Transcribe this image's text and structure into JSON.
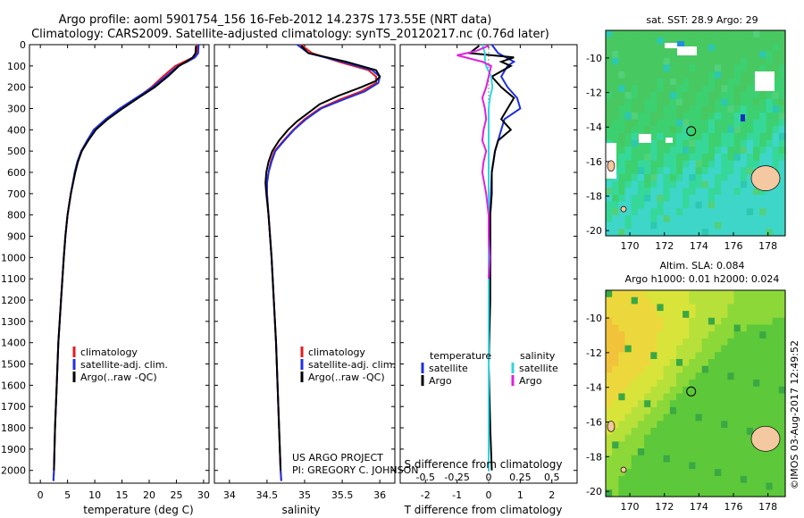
{
  "header": {
    "line1": "Argo profile: aoml 5901754_156 16-Feb-2012 14.237S 173.55E (NRT data)",
    "line2": "Climatology: CARS2009. Satellite-adjusted climatology: synTS_20120217.nc (0.76d later)"
  },
  "colors": {
    "climatology": "#e41a1c",
    "satellite": "#1f2fe0",
    "argo": "#000000",
    "sat_salinity": "#2fd6e0",
    "argo_salinity": "#e020e0"
  },
  "chart_data": [
    {
      "type": "line",
      "id": "temperature",
      "xlabel": "temperature (deg C)",
      "ylabel": "",
      "xlim": [
        -2,
        31
      ],
      "ylim": [
        2060,
        0
      ],
      "xticks": [
        0,
        5,
        10,
        15,
        20,
        25,
        30
      ],
      "yticks": [
        0,
        100,
        200,
        300,
        400,
        500,
        600,
        700,
        800,
        900,
        1000,
        1100,
        1200,
        1300,
        1400,
        1500,
        1600,
        1700,
        1800,
        1900,
        2000
      ],
      "legend": [
        "climatology",
        "satellite-adj. clim.",
        "Argo(..raw -QC)"
      ],
      "series": [
        {
          "name": "climatology",
          "color": "#e41a1c",
          "depth": [
            0,
            40,
            60,
            80,
            100,
            150,
            200,
            250,
            300,
            350,
            400,
            450,
            500,
            550,
            600,
            700,
            800,
            900,
            1000,
            1200,
            1400,
            1600,
            1800,
            2000,
            2050
          ],
          "values": [
            28.9,
            28.8,
            28.1,
            26.4,
            24.8,
            22.5,
            20.4,
            17.8,
            14.9,
            12.2,
            10.0,
            8.7,
            7.6,
            6.9,
            6.4,
            5.6,
            5.0,
            4.6,
            4.3,
            3.8,
            3.3,
            3.0,
            2.7,
            2.5,
            2.4
          ]
        },
        {
          "name": "satellite-adj. clim.",
          "color": "#1f2fe0",
          "depth": [
            0,
            40,
            60,
            80,
            100,
            150,
            200,
            250,
            300,
            350,
            400,
            450,
            500,
            550,
            600,
            700,
            800,
            900,
            1000,
            1200,
            1400,
            1600,
            1800,
            2000,
            2050
          ],
          "values": [
            29.1,
            29.0,
            28.4,
            27.0,
            25.3,
            23.0,
            20.6,
            17.6,
            14.6,
            12.0,
            9.8,
            8.6,
            7.5,
            6.8,
            6.3,
            5.6,
            5.0,
            4.6,
            4.3,
            3.8,
            3.3,
            3.0,
            2.7,
            2.5,
            2.4
          ]
        },
        {
          "name": "Argo(..raw -QC)",
          "color": "#000000",
          "depth": [
            5,
            40,
            60,
            80,
            100,
            150,
            200,
            250,
            300,
            350,
            400,
            450,
            500,
            550,
            600,
            700,
            800,
            900,
            1000,
            1200,
            1400,
            1600,
            1800,
            2000
          ],
          "values": [
            28.6,
            28.5,
            28.0,
            26.8,
            25.5,
            23.4,
            21.0,
            18.0,
            15.1,
            12.4,
            10.2,
            8.8,
            7.6,
            6.9,
            6.4,
            5.6,
            5.0,
            4.6,
            4.3,
            3.8,
            3.3,
            3.0,
            2.7,
            2.5
          ]
        }
      ]
    },
    {
      "type": "line",
      "id": "salinity",
      "xlabel": "salinity",
      "ylabel": "",
      "xlim": [
        33.8,
        36.2
      ],
      "ylim": [
        2060,
        0
      ],
      "xticks": [
        34,
        34.5,
        35,
        35.5,
        36
      ],
      "legend": [
        "climatology",
        "satellite-adj. clim.",
        "Argo(..raw -QC)"
      ],
      "annotations": [
        "US ARGO PROJECT",
        "PI: GREGORY C. JOHNSON"
      ],
      "series": [
        {
          "name": "climatology",
          "color": "#e41a1c",
          "depth": [
            0,
            40,
            80,
            120,
            150,
            180,
            220,
            260,
            300,
            350,
            400,
            450,
            500,
            550,
            600,
            650,
            700,
            800,
            900,
            1000,
            1200,
            1400,
            1600,
            1800,
            2000,
            2050
          ],
          "values": [
            34.95,
            35.1,
            35.45,
            35.85,
            35.95,
            35.95,
            35.75,
            35.45,
            35.2,
            35.0,
            34.85,
            34.72,
            34.6,
            34.55,
            34.52,
            34.5,
            34.5,
            34.52,
            34.54,
            34.56,
            34.59,
            34.62,
            34.64,
            34.66,
            34.68,
            34.69
          ]
        },
        {
          "name": "satellite-adj. clim.",
          "color": "#1f2fe0",
          "depth": [
            0,
            40,
            80,
            120,
            150,
            180,
            220,
            260,
            300,
            350,
            400,
            450,
            500,
            550,
            600,
            650,
            700,
            800,
            900,
            1000,
            1200,
            1400,
            1600,
            1800,
            2000,
            2050
          ],
          "values": [
            34.9,
            35.05,
            35.5,
            35.9,
            36.0,
            35.98,
            35.8,
            35.5,
            35.22,
            35.02,
            34.86,
            34.73,
            34.61,
            34.56,
            34.52,
            34.5,
            34.5,
            34.52,
            34.54,
            34.56,
            34.59,
            34.62,
            34.64,
            34.66,
            34.68,
            34.69
          ]
        },
        {
          "name": "Argo(..raw -QC)",
          "color": "#000000",
          "depth": [
            5,
            40,
            80,
            120,
            150,
            170,
            200,
            240,
            280,
            320,
            360,
            400,
            450,
            500,
            550,
            600,
            650,
            700,
            800,
            900,
            1000,
            1200,
            1400,
            1600,
            1800,
            2000
          ],
          "values": [
            34.95,
            35.05,
            35.55,
            35.95,
            36.0,
            35.95,
            35.75,
            35.45,
            35.2,
            35.05,
            34.9,
            34.78,
            34.66,
            34.57,
            34.52,
            34.49,
            34.48,
            34.49,
            34.52,
            34.54,
            34.56,
            34.59,
            34.62,
            34.64,
            34.66,
            34.68
          ]
        }
      ]
    },
    {
      "type": "line",
      "id": "differences",
      "xlabel": "T difference from climatology",
      "xlabel_top": "S difference from climatology",
      "xlim": [
        -2.8,
        2.8
      ],
      "ylim": [
        2060,
        0
      ],
      "xticks": [
        -2,
        -1,
        0,
        1,
        2
      ],
      "xticks_salinity": [
        "-0.5",
        "-0.25",
        "0",
        "0.25",
        "0.5"
      ],
      "legend_temperature": [
        "temperature",
        "satellite",
        "Argo"
      ],
      "legend_salinity": [
        "salinity",
        "satellite",
        "Argo"
      ],
      "series": [
        {
          "name": "T satellite",
          "color": "#1f2fe0",
          "depth": [
            0,
            40,
            80,
            100,
            150,
            200,
            250,
            300,
            350,
            400,
            450,
            500,
            600,
            800,
            1000,
            1500,
            2000
          ],
          "values": [
            0.1,
            0.3,
            0.8,
            0.6,
            0.4,
            0.6,
            0.9,
            1.0,
            0.5,
            0.4,
            0.3,
            0.2,
            0.1,
            0.05,
            0.05,
            0.0,
            0.0
          ]
        },
        {
          "name": "T Argo",
          "color": "#000000",
          "depth": [
            5,
            40,
            60,
            80,
            100,
            150,
            200,
            250,
            300,
            350,
            400,
            450,
            500,
            600,
            700,
            800,
            1000,
            1200,
            1500,
            1800,
            2000
          ],
          "values": [
            -0.3,
            -0.6,
            0.8,
            0.4,
            0.7,
            0.1,
            0.4,
            0.8,
            0.6,
            0.4,
            0.7,
            0.3,
            0.2,
            0.1,
            0.1,
            0.05,
            0.05,
            0.05,
            0.0,
            0.05,
            0.1
          ]
        },
        {
          "name": "S satellite",
          "color": "#2fd6e0",
          "depth": [
            0,
            40,
            80,
            100,
            150,
            200,
            250,
            300,
            400,
            500,
            600,
            800,
            1000,
            1500,
            2000
          ],
          "values": [
            -0.05,
            -0.03,
            -0.03,
            -0.02,
            0.02,
            0.03,
            0.01,
            0.0,
            0.0,
            0.0,
            0.0,
            0.0,
            0.0,
            0.0,
            0.0
          ]
        },
        {
          "name": "S Argo",
          "color": "#e020e0",
          "depth": [
            5,
            30,
            50,
            80,
            100,
            150,
            200,
            250,
            300,
            350,
            400,
            450,
            500,
            550,
            600,
            700,
            800,
            900,
            1000,
            1100
          ],
          "values": [
            0.0,
            -0.1,
            -0.25,
            -0.05,
            0.02,
            0.0,
            -0.02,
            -0.05,
            -0.03,
            -0.02,
            -0.04,
            -0.05,
            -0.02,
            -0.04,
            -0.05,
            -0.02,
            0.0,
            0.0,
            0.01,
            0.0
          ]
        }
      ]
    },
    {
      "type": "heatmap",
      "id": "sst-map",
      "title": "sat. SST: 28.9  Argo: 29",
      "xticks": [
        170,
        172,
        174,
        176,
        178
      ],
      "yticks": [
        -10,
        -12,
        -14,
        -16,
        -18,
        -20
      ],
      "xlim": [
        168.6,
        179
      ],
      "ylim": [
        -20.3,
        -8.4
      ],
      "float_position": [
        173.55,
        -14.237
      ]
    },
    {
      "type": "heatmap",
      "id": "sla-map",
      "title_line1": "Altim. SLA: 0.084",
      "title_line2": "Argo h1000: 0.01 h2000: 0.024",
      "xticks": [
        170,
        172,
        174,
        176,
        178
      ],
      "yticks": [
        -10,
        -12,
        -14,
        -16,
        -18,
        -20
      ],
      "xlim": [
        168.6,
        179
      ],
      "ylim": [
        -20.3,
        -8.4
      ],
      "float_position": [
        173.55,
        -14.237
      ]
    }
  ],
  "footer_stamp": "©IMOS 03-Aug-2017 12:49:52"
}
